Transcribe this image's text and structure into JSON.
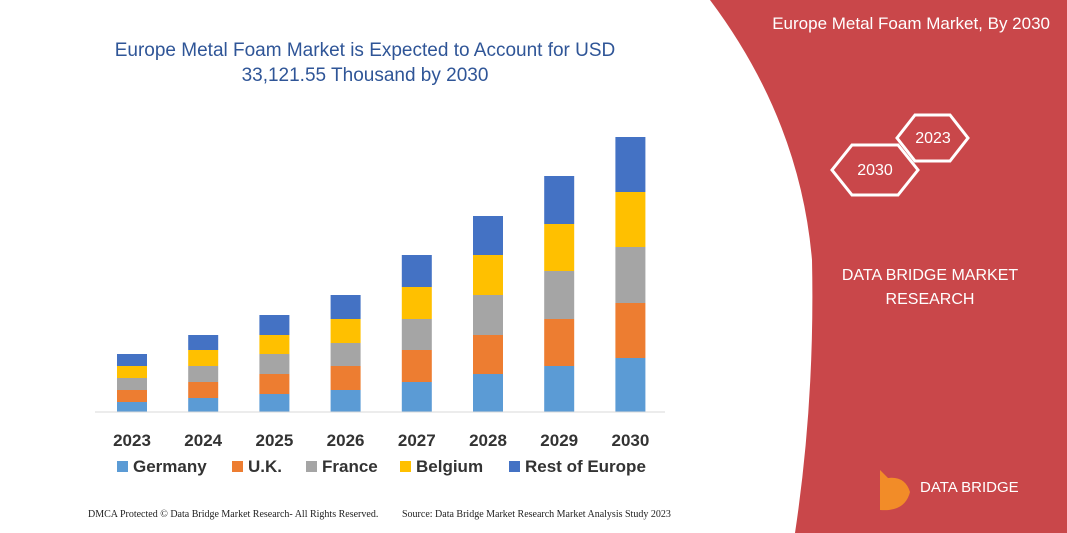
{
  "chart_data": {
    "type": "stacked_bar",
    "title": "Europe Metal Foam Market is Expected to Account for USD 33,121.55 Thousand by 2030",
    "categories": [
      "2023",
      "2024",
      "2025",
      "2026",
      "2027",
      "2028",
      "2029",
      "2030"
    ],
    "series": [
      {
        "name": "Germany",
        "color": "#5b9bd5",
        "values": [
          10,
          14,
          18,
          22,
          30,
          38,
          46,
          54
        ]
      },
      {
        "name": "U.K.",
        "color": "#ed7d31",
        "values": [
          12,
          16,
          20,
          24,
          32,
          39,
          47,
          55
        ]
      },
      {
        "name": "France",
        "color": "#a5a5a5",
        "values": [
          12,
          16,
          20,
          23,
          31,
          40,
          48,
          56
        ]
      },
      {
        "name": "Belgium",
        "color": "#ffc000",
        "values": [
          12,
          16,
          19,
          24,
          32,
          40,
          47,
          55
        ]
      },
      {
        "name": "Rest of Europe",
        "color": "#4472c4",
        "values": [
          12,
          15,
          20,
          24,
          32,
          39,
          48,
          55
        ]
      }
    ]
  },
  "panel": {
    "heading": "Europe Metal Foam Market, By 2030",
    "hex_1": "2023",
    "hex_2": "2030",
    "brand": "DATA BRIDGE MARKET RESEARCH",
    "logo": "DATA BRIDGE"
  },
  "footer": {
    "left": "DMCA Protected © Data Bridge Market Research- All Rights Reserved.",
    "right": "Source: Data Bridge Market Research Market Analysis Study 2023"
  }
}
